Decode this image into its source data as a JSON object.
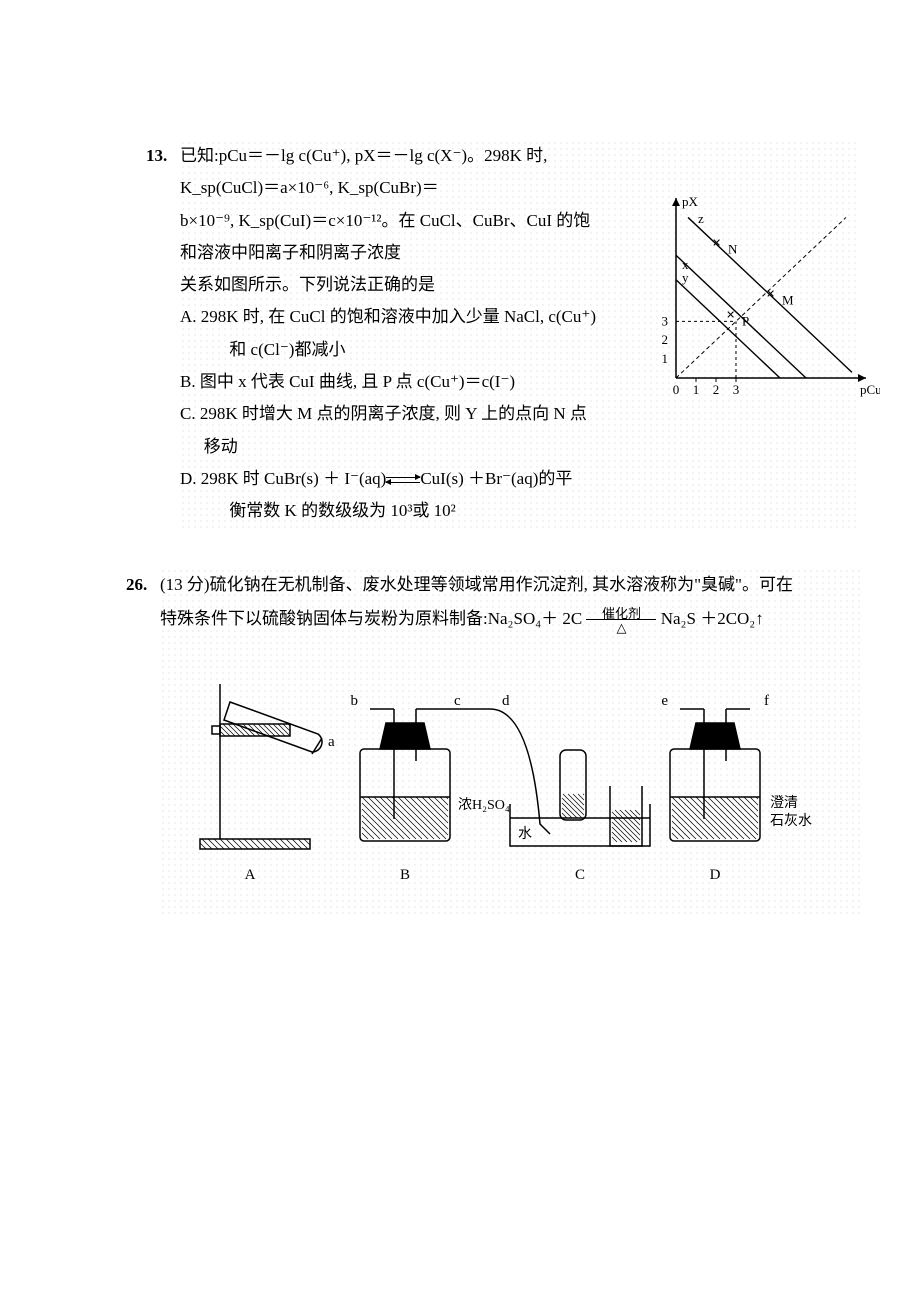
{
  "q13": {
    "number": "13.",
    "stem_1": "已知:pCu＝－lg c(Cu⁺), pX＝－lg c(X⁻)。298K 时, K_sp(CuCl)＝a×10⁻⁶, K_sp(CuBr)＝",
    "stem_2": "b×10⁻⁹, K_sp(CuI)＝c×10⁻¹²。在 CuCl、CuBr、CuI 的饱和溶液中阳离子和阴离子浓度",
    "stem_3": "关系如图所示。下列说法正确的是",
    "opts": {
      "A1": "A. 298K 时, 在 CuCl 的饱和溶液中加入少量 NaCl, c(Cu⁺)",
      "A2": "和 c(Cl⁻)都减小",
      "B": "B. 图中 x 代表 CuI 曲线, 且 P 点 c(Cu⁺)＝c(I⁻)",
      "C": "C. 298K 时增大 M 点的阴离子浓度, 则 Y 上的点向 N 点移动",
      "D1": "D. 298K 时 CuBr(s) ＋ I⁻(aq)",
      "D1_tail": "CuI(s) ＋Br⁻(aq)的平",
      "D2": "衡常数 K 的数级级为 10³或 10²"
    },
    "chart": {
      "type": "line",
      "xlabel": "pCu",
      "ylabel": "pX",
      "xlim": [
        0,
        9
      ],
      "ylim": [
        0,
        9
      ],
      "xtick_labels": [
        "0",
        "1",
        "2",
        "3"
      ],
      "ytick_vals": [
        1,
        2,
        3
      ],
      "ytick_labels": [
        "1",
        "2",
        "3"
      ],
      "lines": {
        "y": {
          "pts": [
            [
              0.0,
              5.2
            ],
            [
              5.2,
              0.0
            ]
          ],
          "label": "y"
        },
        "z": {
          "pts": [
            [
              0.6,
              8.5
            ],
            [
              8.8,
              0.3
            ]
          ],
          "label": "z"
        },
        "x": {
          "pts": [
            [
              0.0,
              6.5
            ],
            [
              6.5,
              0.0
            ]
          ],
          "label": "x"
        },
        "diag": {
          "pts": [
            [
              0,
              0
            ],
            [
              8.5,
              8.5
            ]
          ],
          "dash": "4,3"
        }
      },
      "points": {
        "P": {
          "x": 3.0,
          "y": 3.0
        },
        "M": {
          "x": 5.0,
          "y": 4.1
        },
        "N": {
          "x": 2.3,
          "y": 6.8
        }
      },
      "helper_dash_P": {
        "from1": [
          0,
          3
        ],
        "to1": [
          3,
          3
        ],
        "from2": [
          3,
          0
        ],
        "to2": [
          3,
          3
        ]
      },
      "axis_color": "#000000",
      "line_color": "#000000",
      "line_width": 1.4,
      "font_size": 13,
      "background": "#ffffff"
    }
  },
  "q26": {
    "number": "26.",
    "score": "(13 分)",
    "stem_1": "硫化钠在无机制备、废水处理等领域常用作沉淀剂, 其水溶液称为\"臭碱\"。可在",
    "stem_2_pre": "特殊条件下以硫酸钠固体与炭粉为原料制备:",
    "equation": {
      "lhs": "Na₂SO₄＋ 2C",
      "arrow_top": "催化剂",
      "arrow_bot": "△",
      "rhs": "Na₂S  ＋2CO₂↑"
    },
    "apparatus": {
      "labels": {
        "A": "A",
        "B": "B",
        "C": "C",
        "D": "D",
        "a": "a",
        "b": "b",
        "c": "c",
        "d": "d",
        "e": "e",
        "f": "f",
        "B_reagent": "浓H₂SO₄",
        "C_reagent": "水",
        "D_reagent": "澄清石灰水"
      },
      "style": {
        "stroke": "#000000",
        "stroke_width": 1.5,
        "hatch_angle_deg": 45,
        "fill": "none",
        "font_size": 15
      }
    }
  }
}
